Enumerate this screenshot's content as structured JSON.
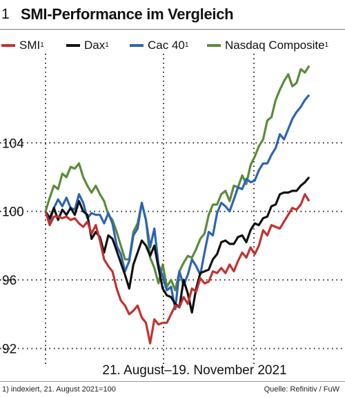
{
  "figure": {
    "number": "1",
    "title": "SMI-Performance im Vergleich",
    "footnote": "1) indexiert, 21. August 2021=100",
    "source": "Quelle: Refinitiv / FuW"
  },
  "chart_data": {
    "type": "line",
    "title": "SMI-Performance im Vergleich",
    "xlabel": "21. August–19. November 2021",
    "ylabel": "",
    "ylim": [
      91.5,
      109.2
    ],
    "yticks": [
      92,
      96,
      100,
      104
    ],
    "ytick_labels": [
      "92",
      "96",
      "100",
      "104"
    ],
    "grid": true,
    "legend_position": "top",
    "n_points": 64,
    "series": [
      {
        "name": "SMI",
        "superscript": "1",
        "color": "#c0332f",
        "values": [
          100,
          99.2,
          99.7,
          99.7,
          99.6,
          99.7,
          99.5,
          99.6,
          99.3,
          99.1,
          99.4,
          98.7,
          99.2,
          98.3,
          97.2,
          96.8,
          96.5,
          95.5,
          94.8,
          94.5,
          94.0,
          94.2,
          94.5,
          93.8,
          93.5,
          92.3,
          93.7,
          93.4,
          93.5,
          93.5,
          94.0,
          94.5,
          94.4,
          95.0,
          94.6,
          95.5,
          95.3,
          96.1,
          95.8,
          95.9,
          96.5,
          96.4,
          96.7,
          96.4,
          96.9,
          96.5,
          97.1,
          97.6,
          97.3,
          97.9,
          97.5,
          98.0,
          98.9,
          98.6,
          99.2,
          99.1,
          99.0,
          99.4,
          99.8,
          100.2,
          100.1,
          100.4,
          101.0,
          100.6
        ]
      },
      {
        "name": "Dax",
        "superscript": "1",
        "color": "#111111",
        "values": [
          100,
          99.6,
          100.2,
          99.5,
          100.1,
          99.8,
          100.2,
          99.8,
          100.6,
          100.0,
          99.8,
          98.4,
          98.8,
          98.5,
          97.6,
          98.6,
          98.4,
          97.7,
          97.0,
          96.3,
          95.5,
          96.9,
          97.6,
          98.3,
          98.0,
          97.4,
          98.0,
          96.7,
          95.5,
          95.1,
          95.0,
          94.6,
          94.4,
          96.0,
          95.2,
          94.1,
          95.5,
          96.4,
          96.5,
          96.6,
          97.2,
          97.5,
          98.2,
          98.3,
          98.1,
          98.1,
          98.5,
          98.6,
          98.2,
          98.9,
          99.3,
          99.2,
          99.6,
          99.7,
          100.3,
          100.4,
          101.0,
          101.1,
          101.1,
          101.2,
          101.2,
          101.5,
          101.7,
          102.0
        ]
      },
      {
        "name": "Cac 40",
        "superscript": "1",
        "color": "#2e64b4",
        "values": [
          100,
          99.4,
          100.2,
          100.7,
          100.3,
          100.8,
          100.2,
          100.1,
          101.0,
          100.5,
          99.6,
          99.9,
          99.8,
          99.8,
          99.3,
          99.9,
          99.3,
          98.0,
          97.5,
          96.5,
          97.1,
          98.6,
          99.0,
          100.5,
          99.5,
          97.9,
          99.0,
          96.9,
          96.2,
          95.4,
          95.6,
          94.3,
          96.5,
          95.7,
          96.3,
          97.2,
          96.8,
          96.3,
          97.6,
          98.8,
          98.6,
          99.9,
          100.5,
          100.3,
          100.0,
          100.7,
          101.4,
          101.3,
          101.9,
          101.7,
          101.8,
          102.4,
          102.8,
          102.8,
          103.3,
          103.7,
          104.5,
          104.2,
          104.8,
          105.4,
          105.8,
          106.1,
          106.5,
          106.8
        ]
      },
      {
        "name": "Nasdaq Composite",
        "superscript": "1",
        "color": "#5a8b3b",
        "values": [
          100,
          100.8,
          101.5,
          101.3,
          102.2,
          102.0,
          102.6,
          102.5,
          102.8,
          102.0,
          101.5,
          101.1,
          101.5,
          101.0,
          100.6,
          99.8,
          99.5,
          98.8,
          98.0,
          97.2,
          97.2,
          98.8,
          99.3,
          100.5,
          99.5,
          97.3,
          96.7,
          95.8,
          96.9,
          95.6,
          96.0,
          95.4,
          96.5,
          97.0,
          97.4,
          97.3,
          97.8,
          98.4,
          98.7,
          99.8,
          100.4,
          100.4,
          101.0,
          101.2,
          100.6,
          101.5,
          101.4,
          102.1,
          101.6,
          102.7,
          103.2,
          103.8,
          104.2,
          105.3,
          105.5,
          106.5,
          107.1,
          107.6,
          108.0,
          107.3,
          107.5,
          108.3,
          108.1,
          108.5
        ]
      }
    ]
  }
}
